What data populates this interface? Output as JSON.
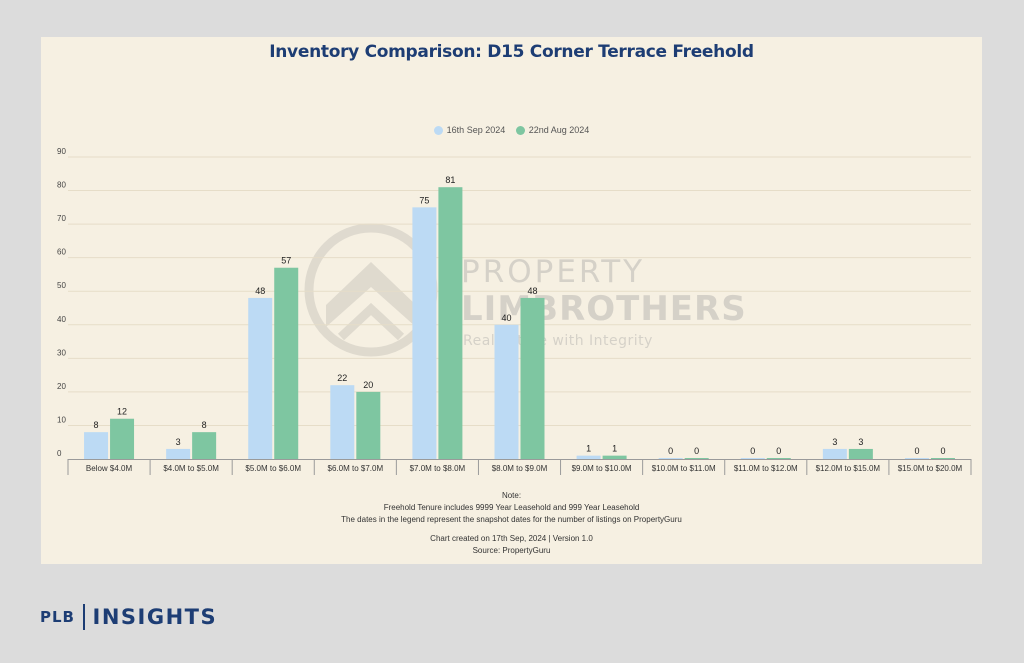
{
  "chart_data": {
    "type": "bar",
    "title": "Inventory Comparison: D15 Corner Terrace Freehold",
    "categories": [
      "Below $4.0M",
      "$4.0M to $5.0M",
      "$5.0M to $6.0M",
      "$6.0M to $7.0M",
      "$7.0M to $8.0M",
      "$8.0M to $9.0M",
      "$9.0M to $10.0M",
      "$10.0M to $11.0M",
      "$11.0M to $12.0M",
      "$12.0M to $15.0M",
      "$15.0M to $20.0M"
    ],
    "series": [
      {
        "name": "16th Sep 2024",
        "color": "#bcdaf4",
        "values": [
          8,
          3,
          48,
          22,
          75,
          40,
          1,
          0,
          0,
          3,
          0
        ]
      },
      {
        "name": "22nd Aug 2024",
        "color": "#7ec6a1",
        "values": [
          12,
          8,
          57,
          20,
          81,
          48,
          1,
          0,
          0,
          3,
          0
        ]
      }
    ],
    "ylim": [
      0,
      90
    ],
    "yticks": [
      0,
      10,
      20,
      30,
      40,
      50,
      60,
      70,
      80,
      90
    ],
    "grid": true,
    "legend_position": "top-center",
    "xlabel": "",
    "ylabel": ""
  },
  "notes": {
    "heading": "Note:",
    "line1": "Freehold Tenure includes 9999 Year Leasehold and 999 Year Leasehold",
    "line2": "The dates in the legend represent the snapshot dates for the number of listings on PropertyGuru",
    "line3": "Chart created on 17th Sep, 2024 | Version 1.0",
    "line4": "Source: PropertyGuru"
  },
  "watermark": {
    "line1": "PROPERTY",
    "line2": "LIMBROTHERS",
    "line3": "Real Estate with Integrity"
  },
  "branding": {
    "plb": "PLB",
    "insights": "INSIGHTS"
  }
}
